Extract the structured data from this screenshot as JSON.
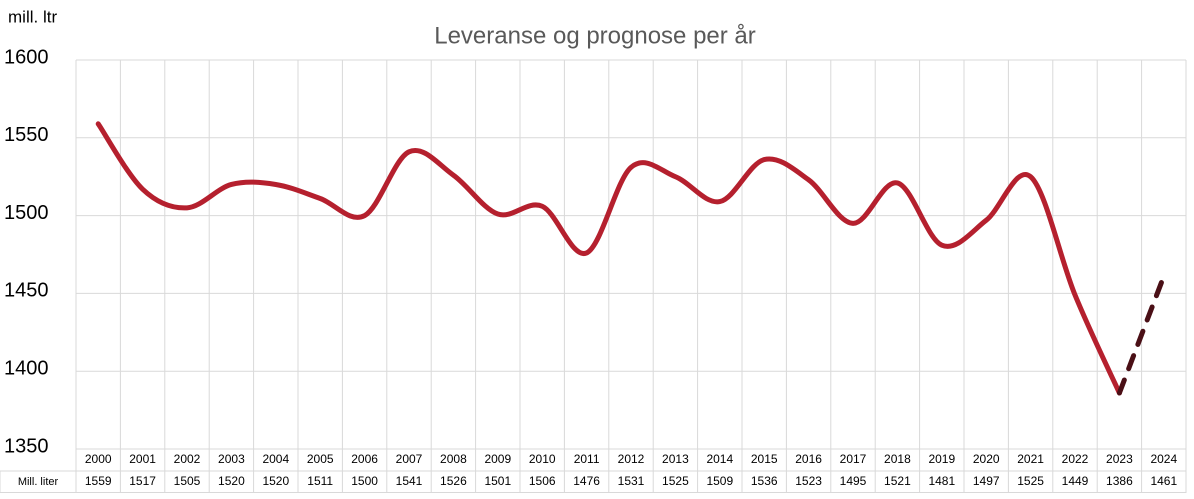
{
  "chart_data": {
    "type": "line",
    "title": "Leveranse og prognose per år",
    "y_label": "mill. ltr",
    "categories": [
      "2000",
      "2001",
      "2002",
      "2003",
      "2004",
      "2005",
      "2006",
      "2007",
      "2008",
      "2009",
      "2010",
      "2011",
      "2012",
      "2013",
      "2014",
      "2015",
      "2016",
      "2017",
      "2018",
      "2019",
      "2020",
      "2021",
      "2022",
      "2023",
      "2024"
    ],
    "series": [
      {
        "name": "Mill. liter",
        "color": "#b5202e",
        "forecast_color": "#4a0f16",
        "forecast_from": "2023",
        "values": [
          1559,
          1517,
          1505,
          1520,
          1520,
          1511,
          1500,
          1541,
          1526,
          1501,
          1506,
          1476,
          1531,
          1525,
          1509,
          1536,
          1523,
          1495,
          1521,
          1481,
          1497,
          1525,
          1449,
          1386,
          1461
        ]
      }
    ],
    "ylim": [
      1350,
      1600
    ],
    "yticks": [
      1350,
      1400,
      1450,
      1500,
      1550,
      1600
    ],
    "grid": true,
    "data_table": true
  }
}
